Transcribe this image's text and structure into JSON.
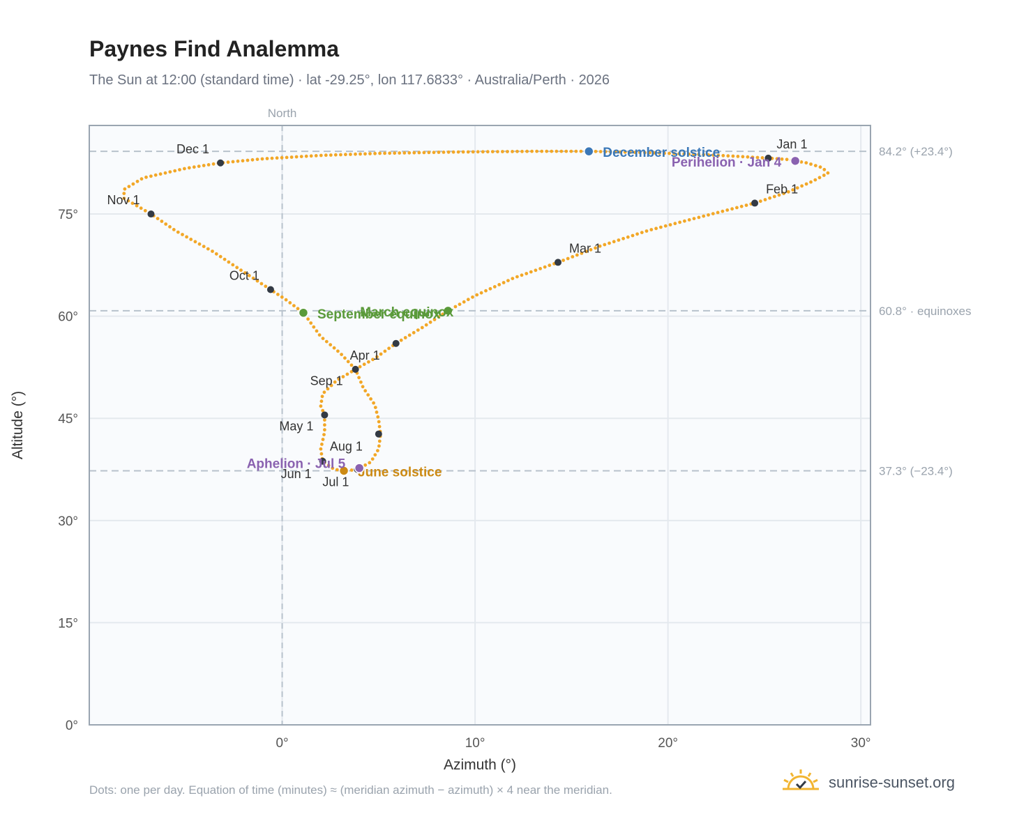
{
  "header": {
    "title": "Paynes Find Analemma",
    "subtitle": "The Sun at 12:00 (standard time) · lat -29.25°, lon 117.6833° · Australia/Perth · 2026"
  },
  "footer": {
    "note": "Dots: one per day. Equation of time (minutes) ≈ (meridian azimuth − azimuth) × 4 near the meridian.",
    "brand": "sunrise-sunset.org",
    "brand_icon": "sun-logo-icon"
  },
  "colors": {
    "path": "#f2a727",
    "month_marker": "#333a44",
    "december": "#3b78b8",
    "june": "#cc8a14",
    "equinox": "#5a9a3a",
    "perihelion": "#8a62b0",
    "grid": "#e4e9ee",
    "frame": "#9aa5b1",
    "reference": "#b8c2cc",
    "plot_bg": "#f9fbfd"
  },
  "chart_data": {
    "type": "scatter",
    "xlabel": "Azimuth (°)",
    "ylabel": "Altitude (°)",
    "xlim": [
      -10,
      30.5
    ],
    "ylim": [
      0,
      88
    ],
    "x_ticks": [
      0,
      10,
      20,
      30
    ],
    "y_ticks": [
      0,
      15,
      30,
      45,
      60,
      75
    ],
    "x_tick_labels": [
      "0°",
      "10°",
      "20°",
      "30°"
    ],
    "y_tick_labels": [
      "0°",
      "15°",
      "30°",
      "45°",
      "60°",
      "75°"
    ],
    "grid": true,
    "north_line": {
      "x": 0,
      "label": "North"
    },
    "reference_lines": [
      {
        "y": 84.2,
        "label": "84.2° (+23.4°)"
      },
      {
        "y": 60.8,
        "label": "60.8° · equinoxes"
      },
      {
        "y": 37.3,
        "label": "37.3° (−23.4°)"
      }
    ],
    "path_points": [
      [
        16,
        84.2
      ],
      [
        19,
        84.0
      ],
      [
        22,
        83.7
      ],
      [
        24,
        83.4
      ],
      [
        25.2,
        83.2
      ],
      [
        26.2,
        83.0
      ],
      [
        27.2,
        82.5
      ],
      [
        28,
        81.8
      ],
      [
        28.3,
        81.0
      ],
      [
        27.5,
        79.8
      ],
      [
        26.2,
        78.2
      ],
      [
        24.5,
        76.6
      ],
      [
        22,
        74.8
      ],
      [
        19,
        72.6
      ],
      [
        16.5,
        70.3
      ],
      [
        14.3,
        67.9
      ],
      [
        12,
        65.6
      ],
      [
        10,
        63.0
      ],
      [
        8.6,
        60.8
      ],
      [
        7.3,
        58.4
      ],
      [
        5.9,
        56.0
      ],
      [
        4.8,
        53.8
      ],
      [
        3.8,
        52.2
      ],
      [
        2.8,
        50.5
      ],
      [
        2.1,
        48.6
      ],
      [
        2.0,
        46.8
      ],
      [
        2.2,
        45.5
      ],
      [
        2.2,
        43.0
      ],
      [
        2.0,
        40.5
      ],
      [
        2.1,
        38.7
      ],
      [
        2.7,
        37.5
      ],
      [
        3.3,
        37.3
      ],
      [
        3.9,
        37.5
      ],
      [
        4.6,
        38.6
      ],
      [
        5.0,
        40.5
      ],
      [
        5.1,
        42.7
      ],
      [
        5.0,
        44.8
      ],
      [
        4.8,
        47.0
      ],
      [
        4.2,
        49.5
      ],
      [
        3.8,
        52.2
      ],
      [
        3.0,
        54.6
      ],
      [
        2.0,
        57.0
      ],
      [
        1.1,
        60.5
      ],
      [
        0.2,
        62.4
      ],
      [
        -0.6,
        63.9
      ],
      [
        -2.0,
        66.5
      ],
      [
        -3.6,
        69.5
      ],
      [
        -5.5,
        72.5
      ],
      [
        -6.8,
        75.0
      ],
      [
        -8.2,
        77.3
      ],
      [
        -8.2,
        78.6
      ],
      [
        -7.2,
        80.3
      ],
      [
        -5.0,
        81.7
      ],
      [
        -3.2,
        82.5
      ],
      [
        -1.0,
        83.1
      ],
      [
        2.0,
        83.6
      ],
      [
        5.0,
        83.9
      ],
      [
        9.0,
        84.1
      ],
      [
        13.0,
        84.2
      ],
      [
        16,
        84.2
      ]
    ],
    "month_markers": [
      {
        "label": "Jan 1",
        "x": 25.2,
        "y": 83.2
      },
      {
        "label": "Feb 1",
        "x": 24.5,
        "y": 76.6
      },
      {
        "label": "Mar 1",
        "x": 14.3,
        "y": 67.9
      },
      {
        "label": "Apr 1",
        "x": 3.8,
        "y": 52.2
      },
      {
        "label": "May 1",
        "x": 2.2,
        "y": 45.5
      },
      {
        "label": "Jun 1",
        "x": 2.1,
        "y": 38.7
      },
      {
        "label": "Jul 1",
        "x": 3.9,
        "y": 37.5
      },
      {
        "label": "Aug 1",
        "x": 5.0,
        "y": 42.7
      },
      {
        "label": "Sep 1",
        "x": 5.9,
        "y": 56.0
      },
      {
        "label": "Oct 1",
        "x": -0.6,
        "y": 63.9
      },
      {
        "label": "Nov 1",
        "x": -6.8,
        "y": 75.0
      },
      {
        "label": "Dec 1",
        "x": -3.2,
        "y": 82.5
      }
    ],
    "events": [
      {
        "label": "December solstice",
        "x": 15.9,
        "y": 84.2,
        "color_key": "december"
      },
      {
        "label": "Perihelion · Jan 4",
        "x": 26.6,
        "y": 82.8,
        "color_key": "perihelion"
      },
      {
        "label": "March equinox",
        "x": 8.6,
        "y": 60.8,
        "color_key": "equinox"
      },
      {
        "label": "September equinox",
        "x": 1.1,
        "y": 60.5,
        "color_key": "equinox"
      },
      {
        "label": "June solstice",
        "x": 3.2,
        "y": 37.3,
        "color_key": "june"
      },
      {
        "label": "Aphelion · Jul 5",
        "x": 4.0,
        "y": 37.7,
        "color_key": "perihelion"
      }
    ]
  }
}
